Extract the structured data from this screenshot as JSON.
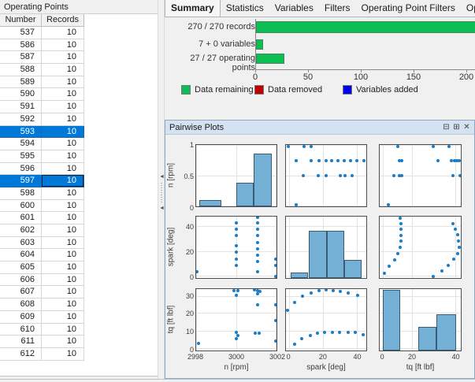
{
  "left_panel": {
    "title": "Operating Points",
    "columns": [
      "Number",
      "Records"
    ],
    "rows": [
      [
        537,
        10
      ],
      [
        586,
        10
      ],
      [
        587,
        10
      ],
      [
        588,
        10
      ],
      [
        589,
        10
      ],
      [
        590,
        10
      ],
      [
        591,
        10
      ],
      [
        592,
        10
      ],
      [
        593,
        10
      ],
      [
        594,
        10
      ],
      [
        595,
        10
      ],
      [
        596,
        10
      ],
      [
        597,
        10
      ],
      [
        598,
        10
      ],
      [
        600,
        10
      ],
      [
        601,
        10
      ],
      [
        602,
        10
      ],
      [
        603,
        10
      ],
      [
        604,
        10
      ],
      [
        605,
        10
      ],
      [
        606,
        10
      ],
      [
        607,
        10
      ],
      [
        608,
        10
      ],
      [
        609,
        10
      ],
      [
        610,
        10
      ],
      [
        611,
        10
      ],
      [
        612,
        10
      ]
    ],
    "selected_numbers": [
      593,
      597
    ],
    "focused_number": 597,
    "selection_color": "#0078d7"
  },
  "splitter": {
    "collapse_glyph": "◄"
  },
  "tabs": [
    "Summary",
    "Statistics",
    "Variables",
    "Filters",
    "Operating Point Filters",
    "Operating"
  ],
  "selected_tab": "Summary",
  "pairwise_panel": {
    "title": "Pairwise Plots",
    "icons": [
      {
        "name": "dock-icon",
        "glyph": "⊟"
      },
      {
        "name": "undock-icon",
        "glyph": "⊞"
      },
      {
        "name": "close-icon",
        "glyph": "✕"
      }
    ]
  },
  "chart_data": [
    {
      "type": "bar",
      "orientation": "horizontal",
      "title": "Summary",
      "categories": [
        "270 / 270 records",
        "7 + 0 variables",
        "27 / 27 operating points"
      ],
      "values": [
        270,
        7,
        27
      ],
      "xticks": [
        0,
        50,
        100,
        150,
        200
      ],
      "xlim": [
        0,
        293
      ],
      "bar_color": "#0cbf55",
      "legend": [
        {
          "label": "Data remaining",
          "color": "#0cbf55"
        },
        {
          "label": "Data removed",
          "color": "#c00000"
        },
        {
          "label": "Variables added",
          "color": "#0000ee"
        }
      ],
      "legend_position": "bottom"
    },
    {
      "type": "scatter-matrix",
      "title": "Pairwise Plots",
      "variables": [
        "n [rpm]",
        "spark [deg]",
        "tq [ft lbf]"
      ],
      "dot_color": "#1a7dc5",
      "hist_color": "#74b0d6",
      "rows": [
        {
          "ylabel": "n [rpm]",
          "yticks": [
            {
              "t": "1",
              "p": 1.0
            },
            {
              "t": "0.5",
              "p": 0.5
            },
            {
              "t": "0",
              "p": 0.0
            }
          ]
        },
        {
          "ylabel": "spark [deg]",
          "yticks": [
            {
              "t": "40",
              "p": 0.84
            },
            {
              "t": "20",
              "p": 0.44
            },
            {
              "t": "0",
              "p": 0.04
            }
          ]
        },
        {
          "ylabel": "tq [ft lbf]",
          "yticks": [
            {
              "t": "30",
              "p": 0.89
            },
            {
              "t": "20",
              "p": 0.61
            },
            {
              "t": "10",
              "p": 0.32
            },
            {
              "t": "0",
              "p": 0.04
            }
          ]
        }
      ],
      "cols": [
        {
          "xlabel": "n [rpm]",
          "xticks": [
            {
              "t": "2998",
              "p": 0.0
            },
            {
              "t": "3000",
              "p": 0.5
            },
            {
              "t": "3002",
              "p": 1.0
            }
          ]
        },
        {
          "xlabel": "spark [deg]",
          "xticks": [
            {
              "t": "0",
              "p": 0.04
            },
            {
              "t": "20",
              "p": 0.46
            },
            {
              "t": "40",
              "p": 0.88
            }
          ]
        },
        {
          "xlabel": "tq [ft lbf]",
          "xticks": [
            {
              "t": "0",
              "p": 0.04
            },
            {
              "t": "20",
              "p": 0.4
            },
            {
              "t": "40",
              "p": 0.93
            }
          ]
        }
      ],
      "cells": [
        [
          {
            "kind": "hist",
            "bars": [
              {
                "x0": 0.04,
                "x1": 0.31,
                "h": 0.1
              },
              {
                "x0": 0.5,
                "x1": 0.72,
                "h": 0.39
              },
              {
                "x0": 0.72,
                "x1": 0.95,
                "h": 0.86
              }
            ]
          },
          {
            "kind": "scatter",
            "points": [
              [
                0.03,
                0.97
              ],
              [
                0.23,
                0.97
              ],
              [
                0.31,
                0.97
              ],
              [
                0.13,
                0.75
              ],
              [
                0.31,
                0.75
              ],
              [
                0.41,
                0.75
              ],
              [
                0.5,
                0.75
              ],
              [
                0.57,
                0.75
              ],
              [
                0.65,
                0.75
              ],
              [
                0.73,
                0.75
              ],
              [
                0.8,
                0.75
              ],
              [
                0.88,
                0.75
              ],
              [
                0.97,
                0.75
              ],
              [
                0.22,
                0.5
              ],
              [
                0.4,
                0.5
              ],
              [
                0.5,
                0.5
              ],
              [
                0.68,
                0.5
              ],
              [
                0.74,
                0.5
              ],
              [
                0.82,
                0.5
              ],
              [
                0.13,
                0.02
              ]
            ]
          },
          {
            "kind": "scatter",
            "points": [
              [
                0.22,
                0.97
              ],
              [
                0.66,
                0.97
              ],
              [
                0.85,
                0.97
              ],
              [
                0.24,
                0.75
              ],
              [
                0.27,
                0.75
              ],
              [
                0.72,
                0.75
              ],
              [
                0.88,
                0.75
              ],
              [
                0.92,
                0.75
              ],
              [
                0.95,
                0.75
              ],
              [
                0.98,
                0.75
              ],
              [
                0.17,
                0.5
              ],
              [
                0.24,
                0.5
              ],
              [
                0.27,
                0.5
              ],
              [
                0.9,
                0.5
              ],
              [
                0.99,
                0.5
              ],
              [
                0.11,
                0.02
              ]
            ]
          }
        ],
        [
          {
            "kind": "scatter",
            "points": [
              [
                0.01,
                0.1
              ],
              [
                0.5,
                0.9
              ],
              [
                0.5,
                0.8
              ],
              [
                0.5,
                0.69
              ],
              [
                0.5,
                0.52
              ],
              [
                0.5,
                0.42
              ],
              [
                0.5,
                0.31
              ],
              [
                0.5,
                0.2
              ],
              [
                0.76,
                0.99
              ],
              [
                0.76,
                0.9
              ],
              [
                0.76,
                0.8
              ],
              [
                0.76,
                0.69
              ],
              [
                0.76,
                0.58
              ],
              [
                0.76,
                0.47
              ],
              [
                0.76,
                0.37
              ],
              [
                0.76,
                0.27
              ],
              [
                0.76,
                0.1
              ],
              [
                0.99,
                0.31
              ],
              [
                0.99,
                0.2
              ],
              [
                0.99,
                0.02
              ]
            ]
          },
          {
            "kind": "hist",
            "bars": [
              {
                "x0": 0.06,
                "x1": 0.28,
                "h": 0.09
              },
              {
                "x0": 0.28,
                "x1": 0.51,
                "h": 0.77
              },
              {
                "x0": 0.51,
                "x1": 0.73,
                "h": 0.77
              },
              {
                "x0": 0.73,
                "x1": 0.95,
                "h": 0.29
              }
            ]
          },
          {
            "kind": "scatter",
            "points": [
              [
                0.25,
                0.97
              ],
              [
                0.26,
                0.88
              ],
              [
                0.26,
                0.79
              ],
              [
                0.26,
                0.69
              ],
              [
                0.26,
                0.6
              ],
              [
                0.25,
                0.5
              ],
              [
                0.22,
                0.4
              ],
              [
                0.18,
                0.29
              ],
              [
                0.12,
                0.19
              ],
              [
                0.06,
                0.08
              ],
              [
                0.9,
                0.88
              ],
              [
                0.93,
                0.79
              ],
              [
                0.96,
                0.7
              ],
              [
                0.97,
                0.6
              ],
              [
                0.98,
                0.5
              ],
              [
                0.96,
                0.4
              ],
              [
                0.91,
                0.31
              ],
              [
                0.84,
                0.21
              ],
              [
                0.77,
                0.12
              ],
              [
                0.66,
                0.02
              ]
            ]
          }
        ],
        [
          {
            "kind": "scatter",
            "points": [
              [
                0.03,
                0.11
              ],
              [
                0.47,
                0.98
              ],
              [
                0.52,
                0.98
              ],
              [
                0.5,
                0.9
              ],
              [
                0.5,
                0.3
              ],
              [
                0.52,
                0.25
              ],
              [
                0.5,
                0.19
              ],
              [
                0.73,
                0.99
              ],
              [
                0.76,
                0.98
              ],
              [
                0.79,
                0.96
              ],
              [
                0.76,
                0.92
              ],
              [
                0.76,
                0.75
              ],
              [
                0.74,
                0.28
              ],
              [
                0.78,
                0.28
              ],
              [
                0.99,
                0.74
              ],
              [
                0.99,
                0.49
              ],
              [
                0.99,
                0.15
              ]
            ]
          },
          {
            "kind": "scatter",
            "points": [
              [
                0.02,
                0.66
              ],
              [
                0.11,
                0.78
              ],
              [
                0.21,
                0.89
              ],
              [
                0.31,
                0.94
              ],
              [
                0.41,
                0.98
              ],
              [
                0.5,
                0.99
              ],
              [
                0.59,
                0.98
              ],
              [
                0.68,
                0.96
              ],
              [
                0.77,
                0.93
              ],
              [
                0.89,
                0.9
              ],
              [
                0.11,
                0.1
              ],
              [
                0.2,
                0.19
              ],
              [
                0.3,
                0.24
              ],
              [
                0.39,
                0.28
              ],
              [
                0.48,
                0.29
              ],
              [
                0.58,
                0.29
              ],
              [
                0.67,
                0.29
              ],
              [
                0.77,
                0.29
              ],
              [
                0.86,
                0.29
              ],
              [
                0.96,
                0.26
              ]
            ]
          },
          {
            "kind": "hist",
            "bars": [
              {
                "x0": 0.04,
                "x1": 0.25,
                "h": 0.99
              },
              {
                "x0": 0.48,
                "x1": 0.7,
                "h": 0.39
              },
              {
                "x0": 0.7,
                "x1": 0.94,
                "h": 0.59
              }
            ]
          }
        ]
      ]
    }
  ]
}
